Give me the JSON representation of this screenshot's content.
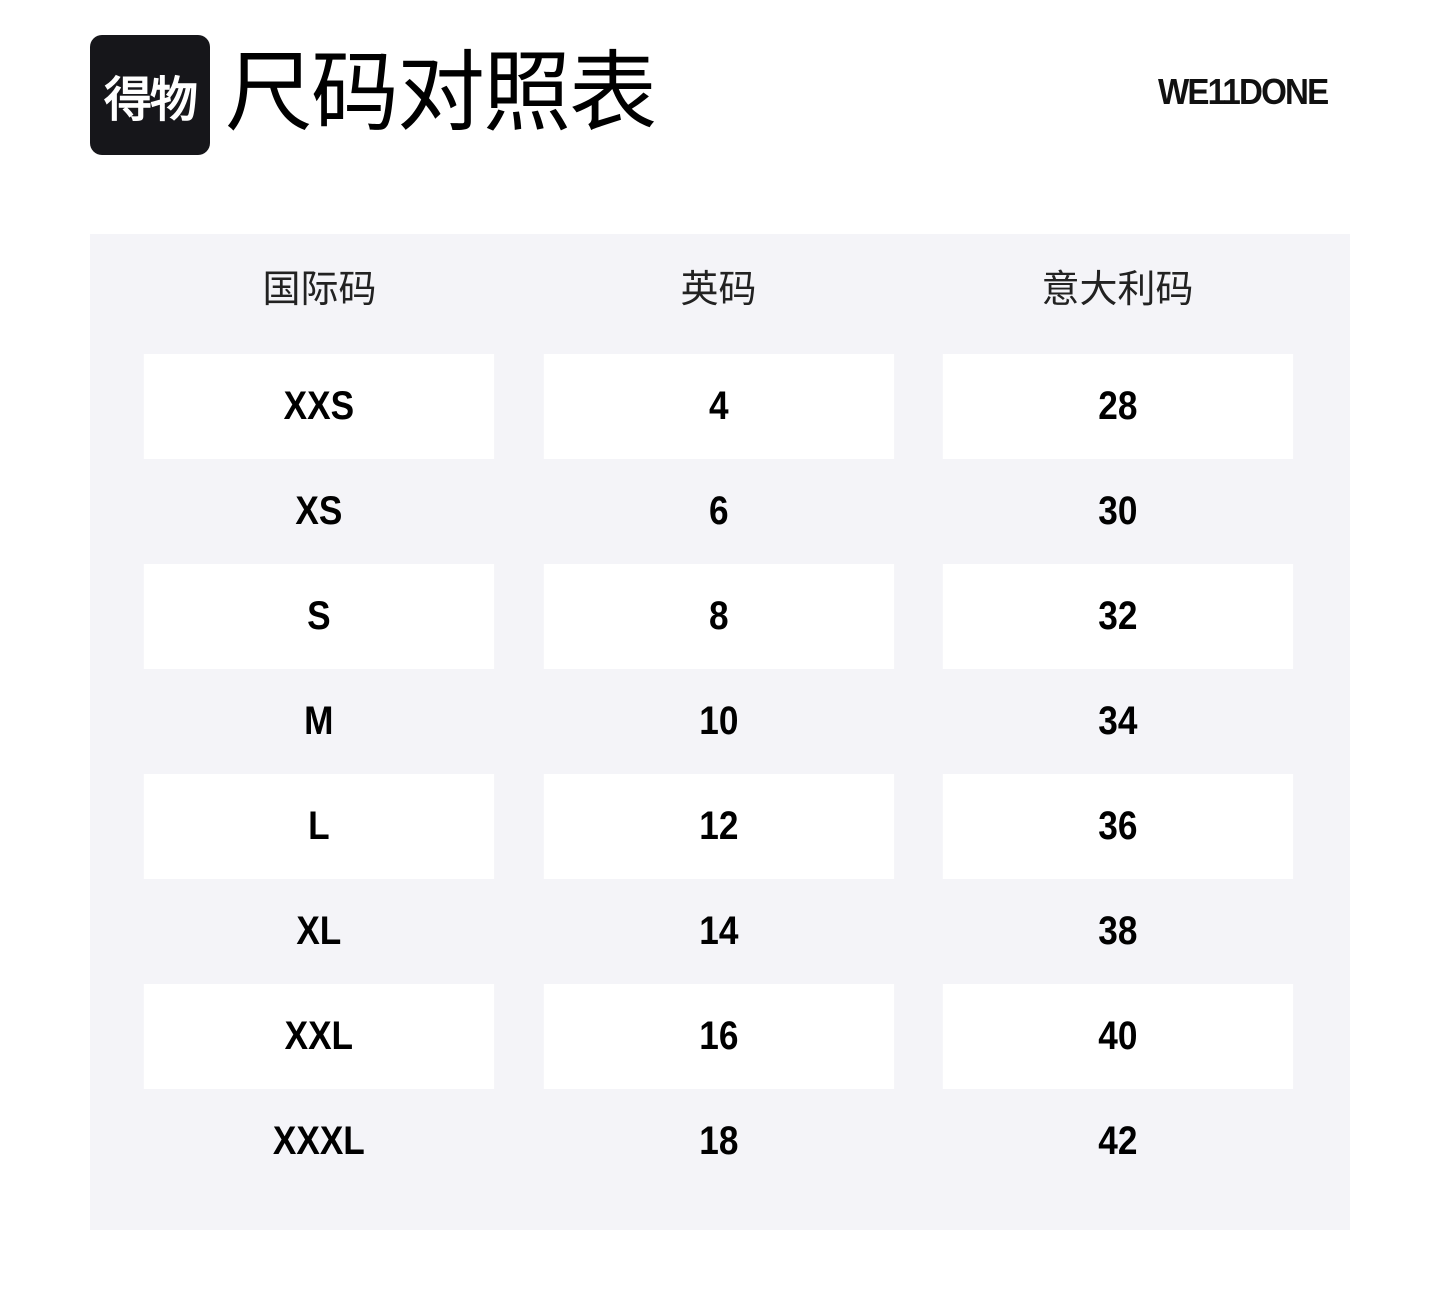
{
  "header": {
    "logo_text": "得物",
    "title": "尺码对照表",
    "brand": "WE11DONE"
  },
  "table": {
    "columns": [
      "国际码",
      "英码",
      "意大利码"
    ],
    "rows": [
      [
        "XXS",
        "4",
        "28"
      ],
      [
        "XS",
        "6",
        "30"
      ],
      [
        "S",
        "8",
        "32"
      ],
      [
        "M",
        "10",
        "34"
      ],
      [
        "L",
        "12",
        "36"
      ],
      [
        "XL",
        "14",
        "38"
      ],
      [
        "XXL",
        "16",
        "40"
      ],
      [
        "XXXL",
        "18",
        "42"
      ]
    ]
  }
}
